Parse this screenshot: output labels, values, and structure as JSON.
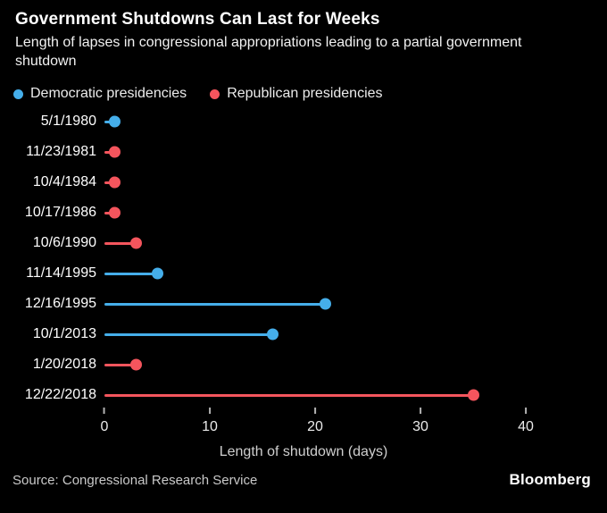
{
  "header": {
    "title": "Government Shutdowns Can Last for Weeks",
    "subtitle": "Length of lapses in congressional appropriations leading to a partial government shutdown"
  },
  "legend": {
    "items": [
      {
        "label": "Democratic presidencies",
        "party": "democratic"
      },
      {
        "label": "Republican presidencies",
        "party": "republican"
      }
    ]
  },
  "colors": {
    "background": "#000000",
    "democratic": "#45aeea",
    "republican": "#f4555d",
    "title_text": "#ffffff",
    "muted_text": "#c9c9c9"
  },
  "chart_data": {
    "type": "bar",
    "orientation": "horizontal-lollipop",
    "title": "Government Shutdowns Can Last for Weeks",
    "xlabel": "Length of shutdown (days)",
    "ylabel": "",
    "xlim": [
      0,
      42
    ],
    "xticks": [
      0,
      10,
      20,
      30,
      40
    ],
    "grid": false,
    "legend_position": "top-left",
    "categories": [
      "5/1/1980",
      "11/23/1981",
      "10/4/1984",
      "10/17/1986",
      "10/6/1990",
      "11/14/1995",
      "12/16/1995",
      "10/1/2013",
      "1/20/2018",
      "12/22/2018"
    ],
    "points": [
      {
        "label": "5/1/1980",
        "value": 1,
        "party": "democratic"
      },
      {
        "label": "11/23/1981",
        "value": 1,
        "party": "republican"
      },
      {
        "label": "10/4/1984",
        "value": 1,
        "party": "republican"
      },
      {
        "label": "10/17/1986",
        "value": 1,
        "party": "republican"
      },
      {
        "label": "10/6/1990",
        "value": 3,
        "party": "republican"
      },
      {
        "label": "11/14/1995",
        "value": 5,
        "party": "democratic"
      },
      {
        "label": "12/16/1995",
        "value": 21,
        "party": "democratic"
      },
      {
        "label": "10/1/2013",
        "value": 16,
        "party": "democratic"
      },
      {
        "label": "1/20/2018",
        "value": 3,
        "party": "republican"
      },
      {
        "label": "12/22/2018",
        "value": 35,
        "party": "republican"
      }
    ]
  },
  "footer": {
    "source": "Source: Congressional Research Service",
    "brand": "Bloomberg"
  }
}
